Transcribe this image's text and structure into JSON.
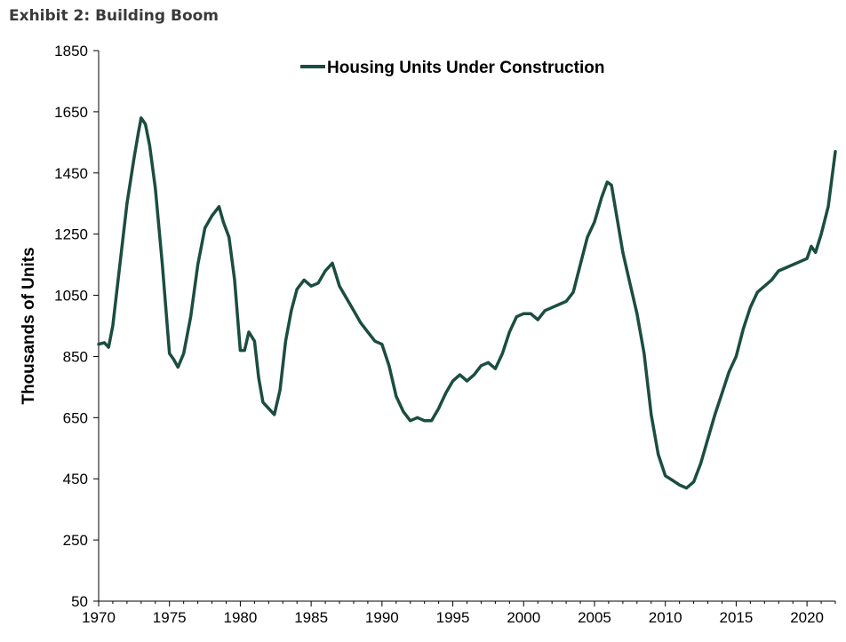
{
  "header": {
    "title": "Exhibit 2: Building Boom"
  },
  "colors": {
    "series_line": "#1b4d40",
    "axis": "#000000",
    "background": "#ffffff"
  },
  "chart_data": {
    "type": "line",
    "title": "",
    "xlabel": "",
    "ylabel": "Thousands of Units",
    "xlim": [
      1970,
      2022
    ],
    "ylim": [
      50,
      1850
    ],
    "x_ticks": [
      "1970",
      "1975",
      "1980",
      "1985",
      "1990",
      "1995",
      "2000",
      "2005",
      "2010",
      "2015",
      "2020"
    ],
    "y_ticks": [
      "50",
      "250",
      "450",
      "650",
      "850",
      "1050",
      "1250",
      "1450",
      "1650",
      "1850"
    ],
    "grid": false,
    "legend": {
      "position": "top-center",
      "entries": [
        "Housing Units Under Construction"
      ]
    },
    "series": [
      {
        "name": "Housing Units Under Construction",
        "color": "#1b4d40",
        "x": [
          1970.0,
          1970.4,
          1970.7,
          1971.0,
          1971.5,
          1972.0,
          1972.5,
          1972.8,
          1973.0,
          1973.3,
          1973.6,
          1974.0,
          1974.5,
          1975.0,
          1975.3,
          1975.6,
          1976.0,
          1976.5,
          1977.0,
          1977.5,
          1978.0,
          1978.5,
          1978.8,
          1979.2,
          1979.6,
          1980.0,
          1980.3,
          1980.6,
          1981.0,
          1981.3,
          1981.6,
          1982.0,
          1982.4,
          1982.8,
          1983.2,
          1983.6,
          1984.0,
          1984.5,
          1985.0,
          1985.5,
          1986.0,
          1986.5,
          1987.0,
          1987.5,
          1988.0,
          1988.5,
          1989.0,
          1989.5,
          1990.0,
          1990.5,
          1991.0,
          1991.5,
          1992.0,
          1992.5,
          1993.0,
          1993.5,
          1994.0,
          1994.5,
          1995.0,
          1995.5,
          1996.0,
          1996.5,
          1997.0,
          1997.5,
          1998.0,
          1998.5,
          1999.0,
          1999.5,
          2000.0,
          2000.5,
          2001.0,
          2001.5,
          2002.0,
          2002.5,
          2003.0,
          2003.5,
          2004.0,
          2004.5,
          2005.0,
          2005.5,
          2005.9,
          2006.2,
          2006.6,
          2007.0,
          2007.5,
          2008.0,
          2008.5,
          2009.0,
          2009.5,
          2010.0,
          2010.5,
          2011.0,
          2011.5,
          2012.0,
          2012.5,
          2013.0,
          2013.5,
          2014.0,
          2014.5,
          2015.0,
          2015.5,
          2016.0,
          2016.5,
          2017.0,
          2017.5,
          2018.0,
          2018.5,
          2019.0,
          2019.5,
          2020.0,
          2020.3,
          2020.6,
          2021.0,
          2021.5,
          2022.0
        ],
        "y": [
          890,
          895,
          880,
          950,
          1150,
          1350,
          1500,
          1580,
          1630,
          1610,
          1540,
          1400,
          1150,
          860,
          840,
          815,
          860,
          980,
          1150,
          1270,
          1310,
          1340,
          1290,
          1240,
          1100,
          870,
          870,
          930,
          900,
          780,
          700,
          680,
          660,
          740,
          900,
          1000,
          1070,
          1100,
          1080,
          1090,
          1130,
          1155,
          1080,
          1040,
          1000,
          960,
          930,
          900,
          890,
          820,
          720,
          670,
          640,
          650,
          640,
          640,
          680,
          730,
          770,
          790,
          770,
          790,
          820,
          830,
          810,
          860,
          930,
          980,
          990,
          990,
          970,
          1000,
          1010,
          1020,
          1030,
          1060,
          1150,
          1240,
          1290,
          1370,
          1420,
          1410,
          1300,
          1190,
          1090,
          990,
          860,
          660,
          530,
          460,
          445,
          430,
          420,
          440,
          500,
          580,
          660,
          730,
          800,
          850,
          940,
          1010,
          1060,
          1080,
          1100,
          1130,
          1140,
          1150,
          1160,
          1170,
          1210,
          1190,
          1250,
          1340,
          1520
        ]
      }
    ]
  }
}
